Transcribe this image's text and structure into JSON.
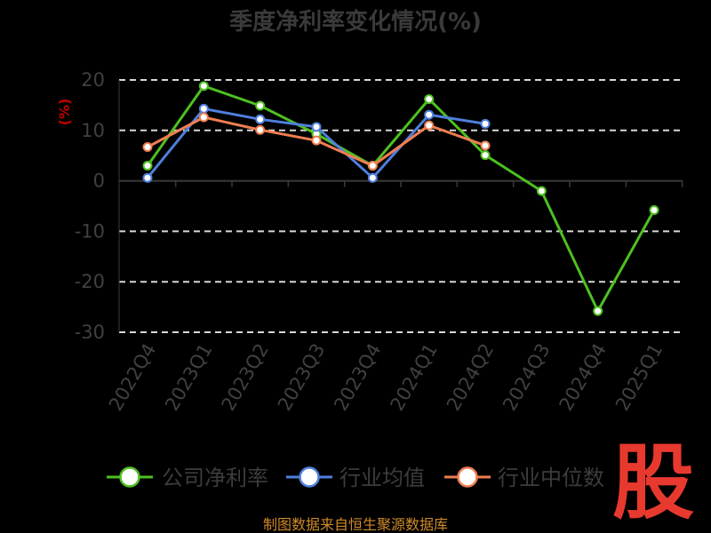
{
  "chart_data": {
    "type": "line",
    "title": "季度净利率变化情况(%)",
    "ylabel": "(%)",
    "xlabel": "",
    "categories": [
      "2022Q4",
      "2023Q1",
      "2023Q2",
      "2023Q3",
      "2023Q4",
      "2024Q1",
      "2024Q2",
      "2024Q3",
      "2024Q4",
      "2025Q1"
    ],
    "ylim": [
      -30,
      20
    ],
    "yticks": [
      20,
      10,
      0,
      -10,
      -20,
      -30
    ],
    "grid": true,
    "legend_position": "bottom",
    "series": [
      {
        "name": "公司净利率",
        "color": "#4ec020",
        "values": [
          3.0,
          18.8,
          14.9,
          9.3,
          3.0,
          16.2,
          5.1,
          -2.0,
          -25.8,
          -5.8
        ]
      },
      {
        "name": "行业均值",
        "color": "#4f7fdd",
        "values": [
          0.6,
          14.3,
          12.2,
          10.7,
          0.6,
          13.1,
          11.3,
          null,
          null,
          null
        ]
      },
      {
        "name": "行业中位数",
        "color": "#f07e50",
        "values": [
          6.7,
          12.6,
          10.1,
          8.0,
          3.0,
          11.0,
          7.0,
          null,
          null,
          null
        ]
      }
    ]
  },
  "source_text": "制图数据来自恒生聚源数据库",
  "logo_text": "股"
}
